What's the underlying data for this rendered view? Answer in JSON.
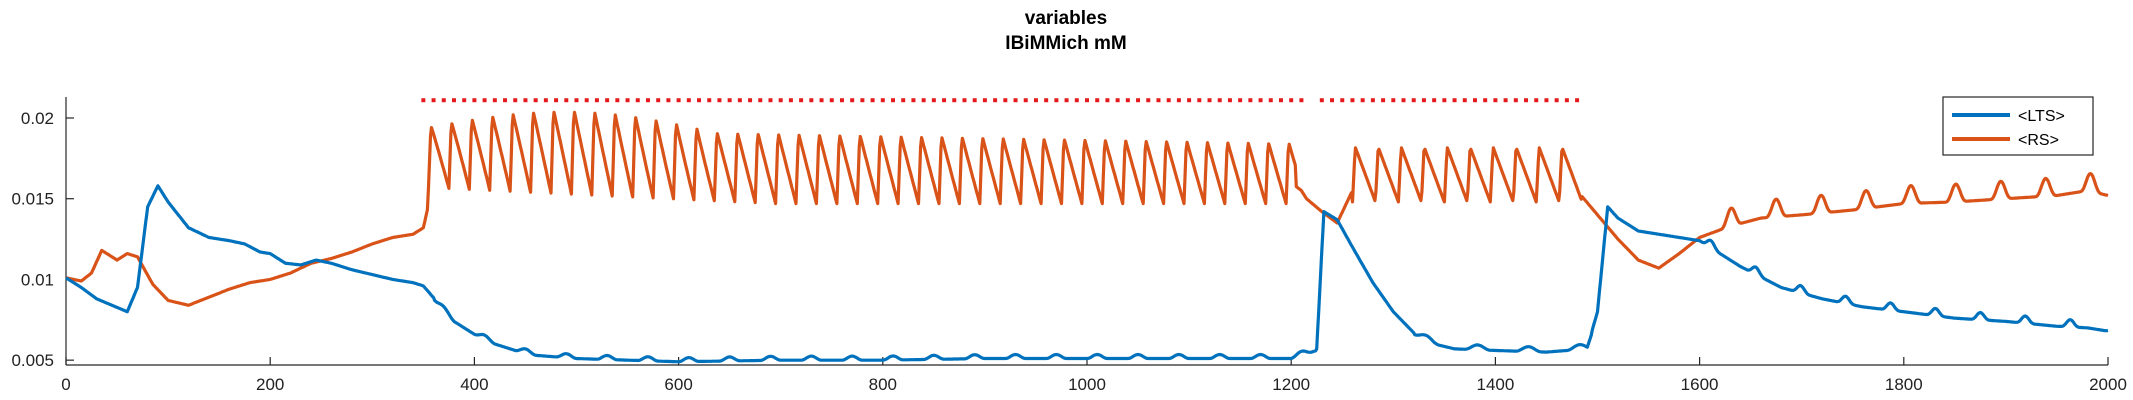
{
  "chart_data": {
    "type": "line",
    "title": "variables",
    "subtitle": "IBiMMich mM",
    "xlabel": "",
    "ylabel": "",
    "xlim": [
      0,
      2000
    ],
    "ylim": [
      0.0047,
      0.0213
    ],
    "xticks": [
      0,
      200,
      400,
      600,
      800,
      1000,
      1200,
      1400,
      1600,
      1800,
      2000
    ],
    "yticks": [
      0.005,
      0.01,
      0.015,
      0.02
    ],
    "ytick_labels": [
      "0.005",
      "0.01",
      "0.015",
      "0.02"
    ],
    "grid": false,
    "legend_position": "top-right",
    "stimulus_markers": {
      "color": "#E41A1C",
      "y": 0.0211,
      "x_ranges": [
        [
          350,
          1480
        ]
      ],
      "gap": [
        1210,
        1230
      ]
    },
    "series": [
      {
        "name": "<LTS>",
        "color": "#0072BD",
        "x": [
          0,
          15,
          30,
          45,
          60,
          70,
          80,
          90,
          100,
          120,
          140,
          160,
          175,
          190,
          200,
          215,
          230,
          245,
          260,
          280,
          300,
          320,
          340,
          350,
          365,
          380,
          400,
          420,
          440,
          460,
          500,
          550,
          600,
          700,
          800,
          900,
          1000,
          1100,
          1200,
          1225,
          1232,
          1245,
          1260,
          1280,
          1300,
          1320,
          1340,
          1360,
          1400,
          1450,
          1490,
          1500,
          1510,
          1520,
          1540,
          1560,
          1580,
          1600,
          1640,
          1680,
          1720,
          1760,
          1800,
          1850,
          1900,
          1950,
          1980,
          2000
        ],
        "y": [
          0.0101,
          0.0095,
          0.0088,
          0.0084,
          0.008,
          0.0095,
          0.0145,
          0.0158,
          0.0148,
          0.0132,
          0.0126,
          0.0124,
          0.0122,
          0.0117,
          0.0116,
          0.011,
          0.0109,
          0.0112,
          0.011,
          0.0106,
          0.0103,
          0.01,
          0.0098,
          0.0096,
          0.0085,
          0.0075,
          0.0067,
          0.0061,
          0.0057,
          0.0054,
          0.0052,
          0.0051,
          0.005,
          0.0051,
          0.0051,
          0.0052,
          0.0052,
          0.0052,
          0.0052,
          0.0057,
          0.0142,
          0.0137,
          0.012,
          0.0098,
          0.008,
          0.0067,
          0.0061,
          0.0058,
          0.0057,
          0.0056,
          0.0058,
          0.008,
          0.0145,
          0.0138,
          0.013,
          0.0128,
          0.0126,
          0.0124,
          0.0108,
          0.0095,
          0.0088,
          0.0083,
          0.008,
          0.0076,
          0.0074,
          0.0071,
          0.007,
          0.0068
        ]
      },
      {
        "name": "<RS>",
        "color": "#D95319",
        "x": [
          0,
          15,
          25,
          35,
          50,
          60,
          70,
          85,
          100,
          120,
          140,
          160,
          180,
          200,
          220,
          240,
          260,
          280,
          300,
          320,
          340,
          350,
          360,
          1200,
          1210,
          1215,
          1230,
          1245,
          1260,
          1480,
          1500,
          1520,
          1540,
          1560,
          1580,
          1600,
          1630,
          1660,
          1700,
          1750,
          1800,
          1850,
          1900,
          1950,
          1980,
          2000
        ],
        "y": [
          0.0101,
          0.0099,
          0.0104,
          0.0118,
          0.0112,
          0.0116,
          0.0114,
          0.0097,
          0.0087,
          0.0084,
          0.0089,
          0.0094,
          0.0098,
          0.01,
          0.0104,
          0.011,
          0.0113,
          0.0117,
          0.0122,
          0.0126,
          0.0128,
          0.0132,
          0.016,
          0.016,
          0.0155,
          0.015,
          0.0142,
          0.0135,
          0.0155,
          0.0155,
          0.014,
          0.0125,
          0.0112,
          0.0107,
          0.0116,
          0.0126,
          0.0133,
          0.0138,
          0.014,
          0.0143,
          0.0147,
          0.0148,
          0.015,
          0.0152,
          0.0155,
          0.0152
        ]
      }
    ]
  }
}
